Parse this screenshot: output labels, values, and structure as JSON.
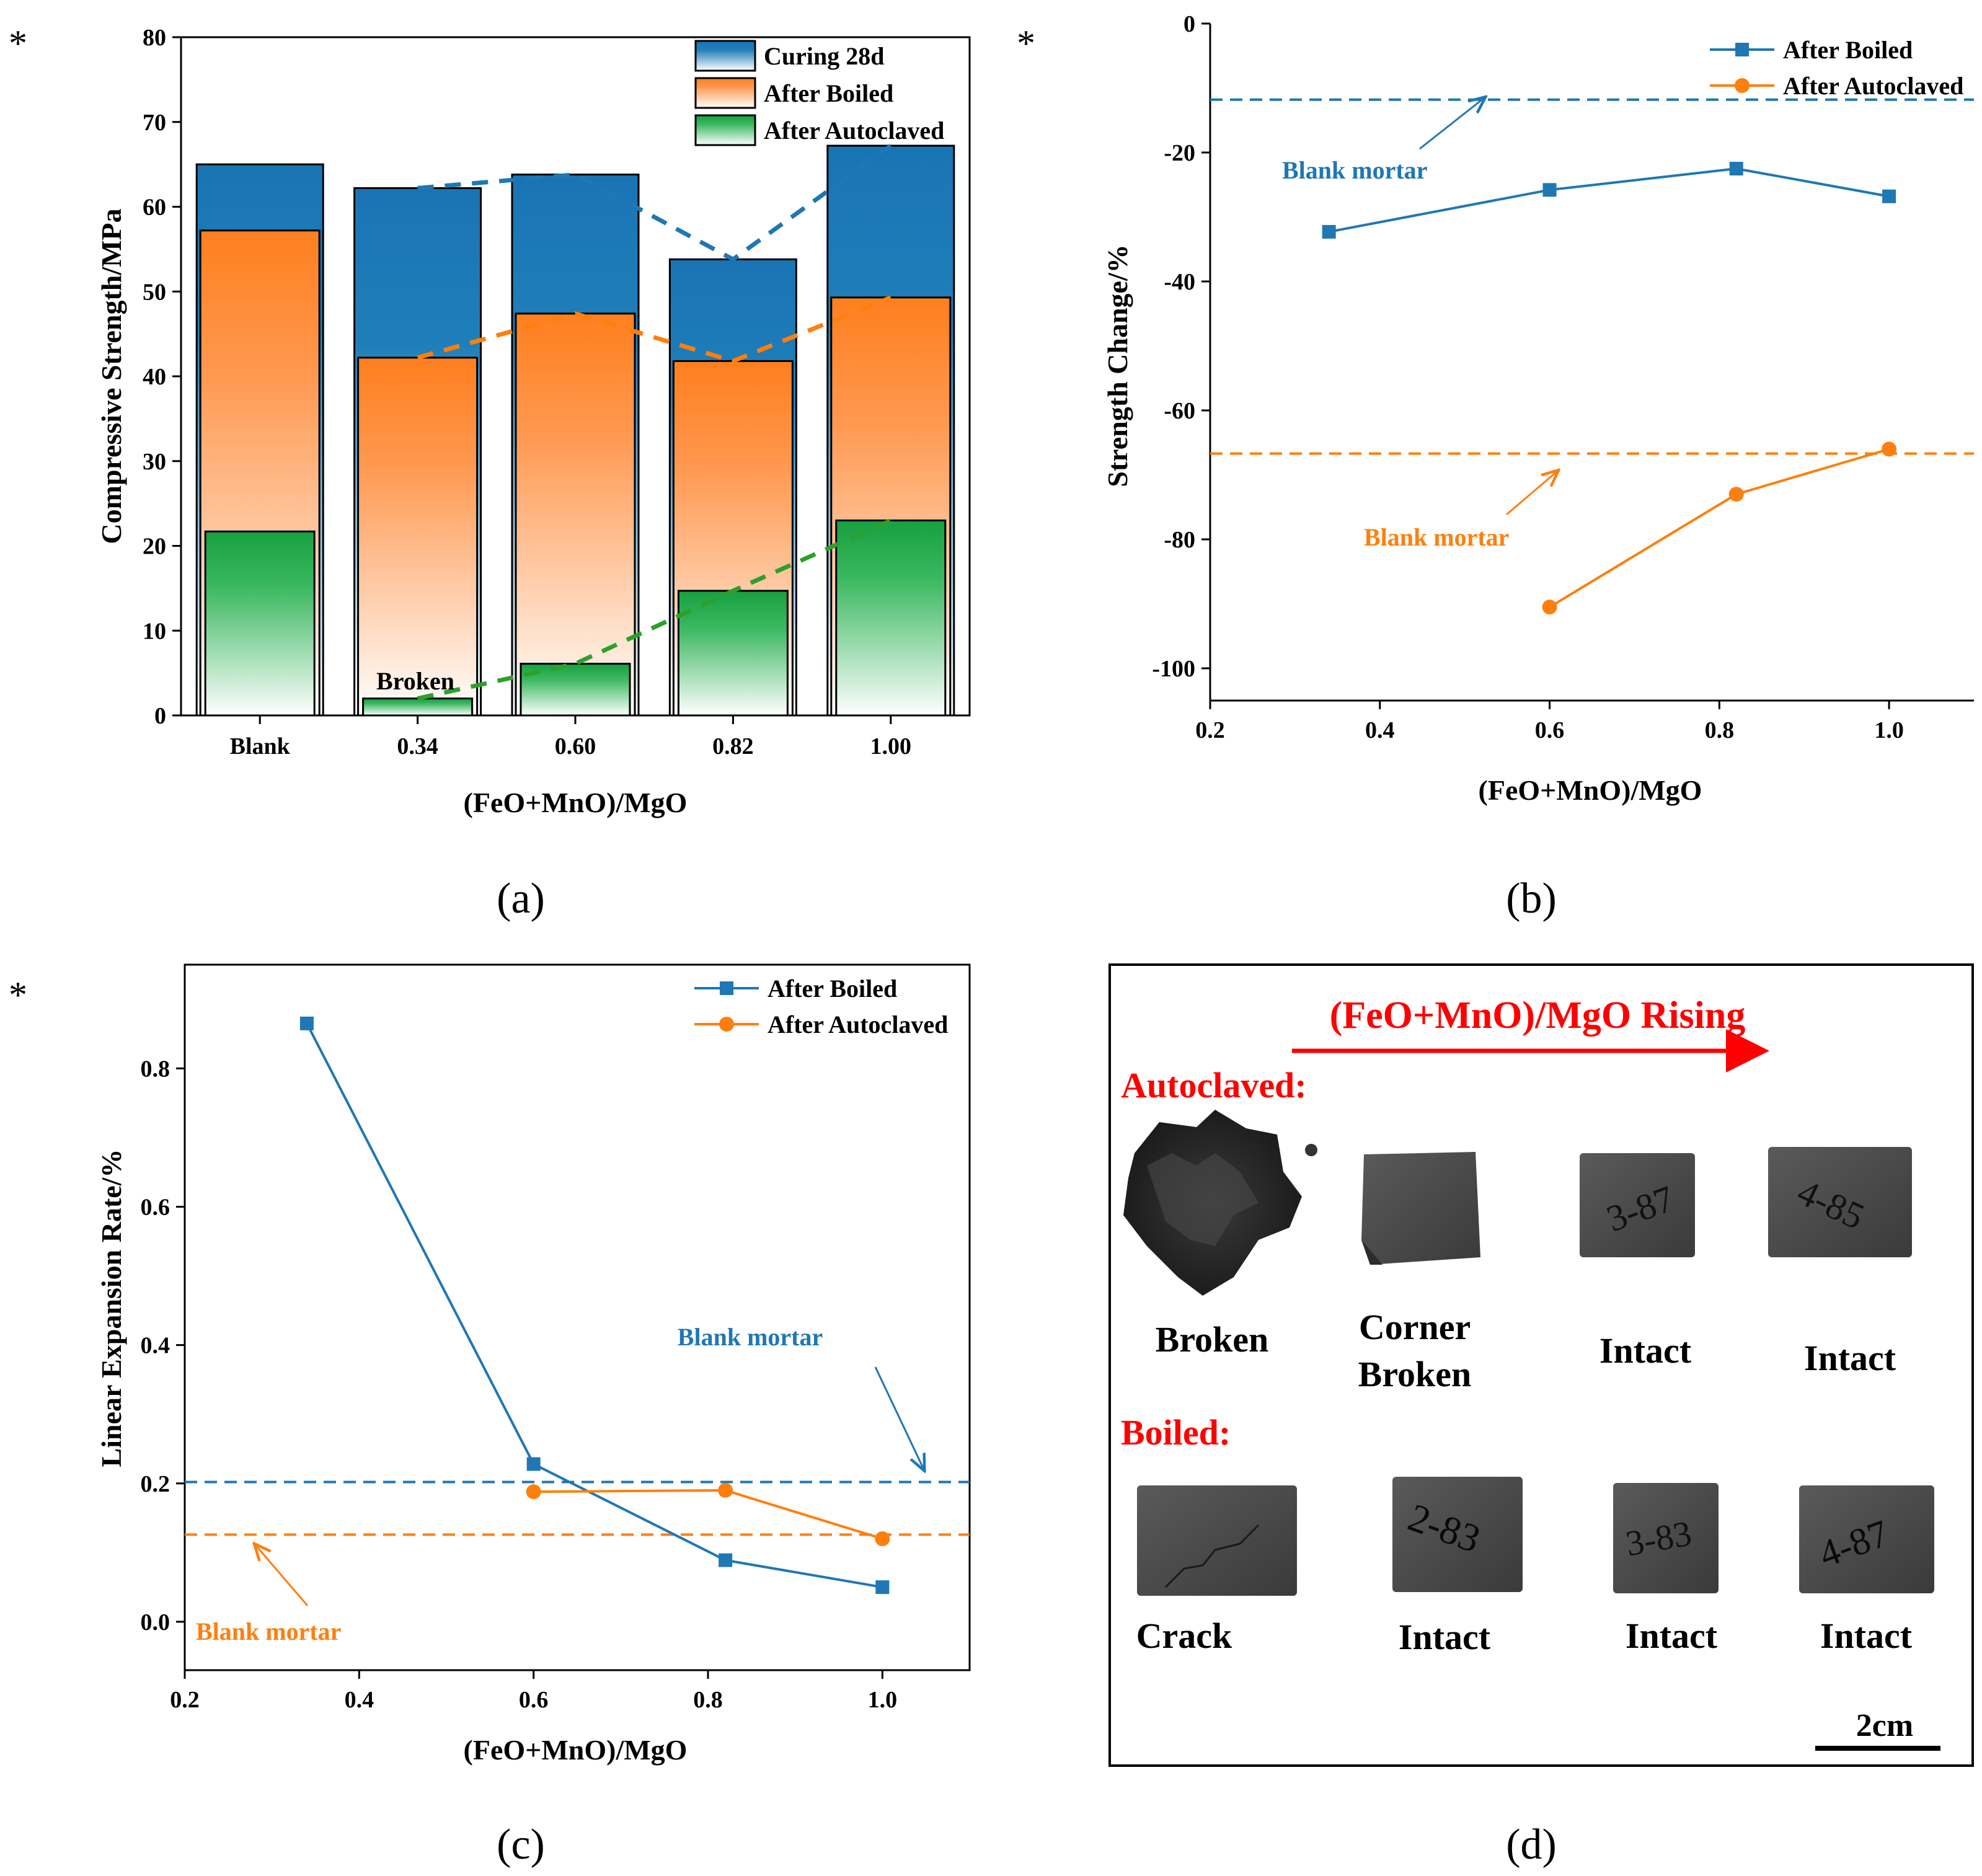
{
  "figure": {
    "asterisk": "*"
  },
  "chart_data": [
    {
      "id": "a",
      "type": "bar",
      "panel_label": "(a)",
      "xlabel": "(FeO+MnO)/MgO",
      "ylabel": "Compressive Strength/MPa",
      "ylim": [
        0,
        80
      ],
      "yticks": [
        0,
        10,
        20,
        30,
        40,
        50,
        60,
        70,
        80
      ],
      "categories": [
        "Blank",
        "0.34",
        "0.60",
        "0.82",
        "1.00"
      ],
      "series": [
        {
          "name": "Curing 28d",
          "color": "#1f77b4",
          "values": [
            65.0,
            62.2,
            63.8,
            53.8,
            67.2
          ]
        },
        {
          "name": "After Boiled",
          "color": "#ff7f0e",
          "values": [
            57.2,
            42.2,
            47.4,
            41.8,
            49.3
          ]
        },
        {
          "name": "After Autoclaved",
          "color": "#2ca02c",
          "values": [
            21.7,
            2.0,
            6.1,
            14.7,
            23.0
          ]
        }
      ],
      "annotations": [
        {
          "text": "Broken",
          "category": "0.34"
        }
      ],
      "trend_lines": "dashed lines linking 0.34-1.00 values of each series",
      "legend_position": "top-right"
    },
    {
      "id": "b",
      "type": "line",
      "panel_label": "(b)",
      "xlabel": "(FeO+MnO)/MgO",
      "ylabel": "Strength Change/%",
      "xlim": [
        0.2,
        1.1
      ],
      "xticks": [
        0.2,
        0.4,
        0.6,
        0.8,
        1.0
      ],
      "ylim": [
        -105,
        0
      ],
      "yticks": [
        0,
        -20,
        -40,
        -60,
        -80,
        -100
      ],
      "series": [
        {
          "name": "After Boiled",
          "color": "#1f77b4",
          "marker": "square",
          "x": [
            0.34,
            0.6,
            0.82,
            1.0
          ],
          "y": [
            -32.3,
            -25.8,
            -22.5,
            -26.8
          ]
        },
        {
          "name": "After Autoclaved",
          "color": "#ff7f0e",
          "marker": "circle",
          "x": [
            0.6,
            0.82,
            1.0
          ],
          "y": [
            -90.5,
            -73.0,
            -66.0
          ]
        }
      ],
      "reference_lines": [
        {
          "label": "Blank mortar",
          "y": -11.8,
          "color": "#1f77b4"
        },
        {
          "label": "Blank mortar",
          "y": -66.7,
          "color": "#ff7f0e"
        }
      ],
      "legend_position": "top-right"
    },
    {
      "id": "c",
      "type": "line",
      "panel_label": "(c)",
      "xlabel": "(FeO+MnO)/MgO",
      "ylabel": "Linear Expansion Rate/%",
      "xlim": [
        0.2,
        1.1
      ],
      "xticks": [
        0.2,
        0.4,
        0.6,
        0.8,
        1.0
      ],
      "ylim": [
        -0.07,
        0.95
      ],
      "yticks": [
        0,
        0.2,
        0.4,
        0.6,
        0.8
      ],
      "series": [
        {
          "name": "After Boiled",
          "color": "#1f77b4",
          "marker": "square",
          "x": [
            0.34,
            0.6,
            0.82,
            1.0
          ],
          "y": [
            0.865,
            0.228,
            0.089,
            0.05
          ]
        },
        {
          "name": "After Autoclaved",
          "color": "#ff7f0e",
          "marker": "circle",
          "x": [
            0.6,
            0.82,
            1.0
          ],
          "y": [
            0.188,
            0.19,
            0.12
          ]
        }
      ],
      "reference_lines": [
        {
          "label": "Blank mortar",
          "y": 0.202,
          "color": "#1f77b4"
        },
        {
          "label": "Blank mortar",
          "y": 0.126,
          "color": "#ff7f0e"
        }
      ],
      "legend_position": "top-right"
    }
  ],
  "photo": {
    "panel_label": "(d)",
    "arrow_label": "(FeO+MnO)/MgO Rising",
    "autoclaved_title": "Autoclaved:",
    "boiled_title": "Boiled:",
    "autoclaved_labels": [
      "Broken",
      "Corner\nBroken",
      "Intact",
      "Intact"
    ],
    "boiled_labels": [
      "Crack",
      "Intact",
      "Intact",
      "Intact"
    ],
    "specimen_marks": [
      "3-87",
      "4-85",
      "2-83",
      "3-83",
      "4-87"
    ],
    "scale_label": "2cm"
  }
}
